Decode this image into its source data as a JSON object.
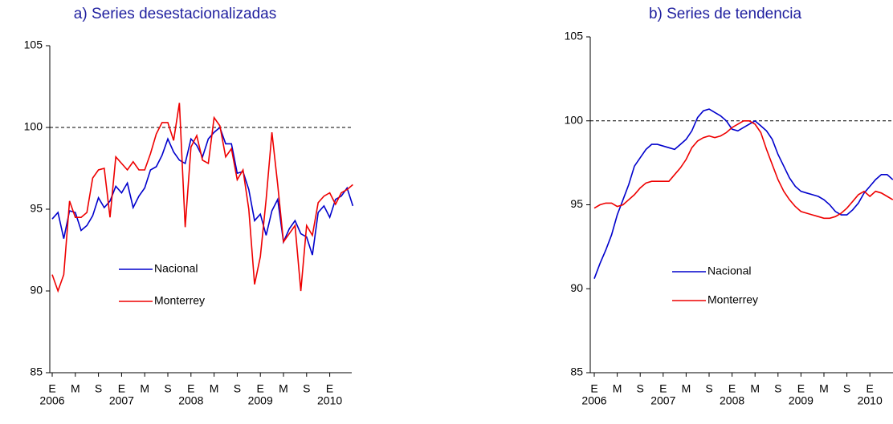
{
  "chart_data": [
    {
      "type": "line",
      "title": "a) Series desestacionalizadas",
      "categories": [
        "E",
        null,
        null,
        null,
        "M",
        null,
        null,
        null,
        "S",
        null,
        null,
        null,
        "E",
        null,
        null,
        null,
        "M",
        null,
        null,
        null,
        "S",
        null,
        null,
        null,
        "E",
        null,
        null,
        null,
        "M",
        null,
        null,
        null,
        "S",
        null,
        null,
        null,
        "E",
        null,
        null,
        null,
        "M",
        null,
        null,
        null,
        "S",
        null,
        null,
        null,
        "E",
        null,
        null,
        null,
        null
      ],
      "years": [
        "2006",
        "2007",
        "2008",
        "2009",
        "2010"
      ],
      "ylim": [
        85,
        105
      ],
      "yticks": [
        85,
        90,
        95,
        100,
        105
      ],
      "reference_line": 100,
      "series": [
        {
          "name": "Nacional",
          "color": "#0000cc",
          "values": [
            94.4,
            94.8,
            93.2,
            94.9,
            94.8,
            93.7,
            94.0,
            94.6,
            95.7,
            95.1,
            95.5,
            96.4,
            96.0,
            96.6,
            95.1,
            95.8,
            96.3,
            97.4,
            97.6,
            98.3,
            99.3,
            98.5,
            98.0,
            97.8,
            99.3,
            98.9,
            98.2,
            99.3,
            99.7,
            100.0,
            99.0,
            99.0,
            97.2,
            97.3,
            96.2,
            94.3,
            94.7,
            93.4,
            94.9,
            95.6,
            93.0,
            93.8,
            94.3,
            93.5,
            93.3,
            92.2,
            94.8,
            95.2,
            94.5,
            95.6,
            95.8,
            96.3,
            95.2
          ]
        },
        {
          "name": "Monterrey",
          "color": "#ee0000",
          "values": [
            91.0,
            90.0,
            91.0,
            95.5,
            94.5,
            94.5,
            94.8,
            96.9,
            97.4,
            97.5,
            94.5,
            98.2,
            97.8,
            97.4,
            97.9,
            97.4,
            97.4,
            98.4,
            99.6,
            100.3,
            100.3,
            99.2,
            101.5,
            93.9,
            98.8,
            99.5,
            98.0,
            97.8,
            100.6,
            100.1,
            98.2,
            98.7,
            96.8,
            97.4,
            95.0,
            90.4,
            92.1,
            95.6,
            99.7,
            96.5,
            93.0,
            93.5,
            94.0,
            90.0,
            94.0,
            93.4,
            95.4,
            95.8,
            96.0,
            95.3,
            96.0,
            96.2,
            96.5
          ]
        }
      ]
    },
    {
      "type": "line",
      "title": "b) Series de tendencia",
      "categories": [
        "E",
        null,
        null,
        null,
        "M",
        null,
        null,
        null,
        "S",
        null,
        null,
        null,
        "E",
        null,
        null,
        null,
        "M",
        null,
        null,
        null,
        "S",
        null,
        null,
        null,
        "E",
        null,
        null,
        null,
        "M",
        null,
        null,
        null,
        "S",
        null,
        null,
        null,
        "E",
        null,
        null,
        null,
        "M",
        null,
        null,
        null,
        "S",
        null,
        null,
        null,
        "E",
        null,
        null,
        null,
        null
      ],
      "years": [
        "2006",
        "2007",
        "2008",
        "2009",
        "2010"
      ],
      "ylim": [
        85,
        105
      ],
      "yticks": [
        85,
        90,
        95,
        100,
        105
      ],
      "reference_line": 100,
      "series": [
        {
          "name": "Nacional",
          "color": "#0000cc",
          "values": [
            90.6,
            91.5,
            92.3,
            93.2,
            94.4,
            95.3,
            96.2,
            97.3,
            97.8,
            98.3,
            98.6,
            98.6,
            98.5,
            98.4,
            98.3,
            98.6,
            98.9,
            99.4,
            100.2,
            100.6,
            100.7,
            100.5,
            100.3,
            100.0,
            99.5,
            99.4,
            99.6,
            99.8,
            100.0,
            99.7,
            99.4,
            98.9,
            98.0,
            97.3,
            96.6,
            96.1,
            95.8,
            95.7,
            95.6,
            95.5,
            95.3,
            95.0,
            94.6,
            94.4,
            94.4,
            94.7,
            95.1,
            95.7,
            96.1,
            96.5,
            96.8,
            96.8,
            96.5
          ]
        },
        {
          "name": "Monterrey",
          "color": "#ee0000",
          "values": [
            94.8,
            95.0,
            95.1,
            95.1,
            94.9,
            95.0,
            95.3,
            95.6,
            96.0,
            96.3,
            96.4,
            96.4,
            96.4,
            96.4,
            96.8,
            97.2,
            97.7,
            98.4,
            98.8,
            99.0,
            99.1,
            99.0,
            99.1,
            99.3,
            99.6,
            99.8,
            100.0,
            100.0,
            99.8,
            99.3,
            98.3,
            97.4,
            96.5,
            95.8,
            95.3,
            94.9,
            94.6,
            94.5,
            94.4,
            94.3,
            94.2,
            94.2,
            94.3,
            94.5,
            94.8,
            95.2,
            95.6,
            95.8,
            95.5,
            95.8,
            95.7,
            95.5,
            95.3
          ]
        }
      ]
    }
  ]
}
